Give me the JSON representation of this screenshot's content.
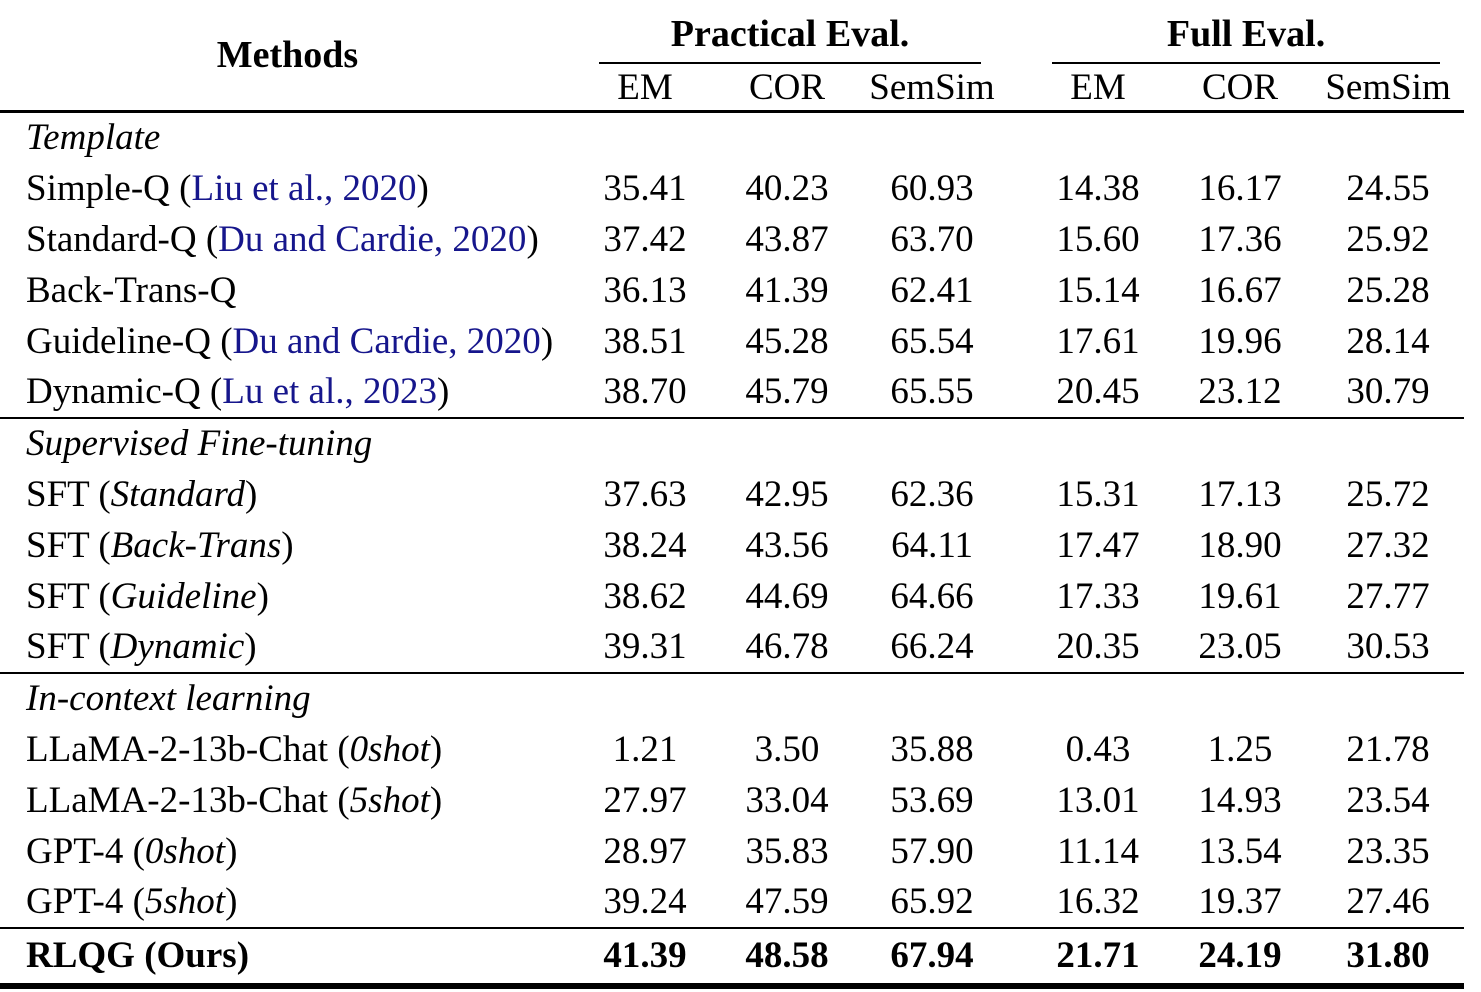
{
  "header": {
    "methods": "Methods",
    "groups": [
      {
        "label": "Practical Eval.",
        "cols": [
          "EM",
          "COR",
          "SemSim"
        ]
      },
      {
        "label": "Full Eval.",
        "cols": [
          "EM",
          "COR",
          "SemSim"
        ]
      }
    ]
  },
  "sections": [
    {
      "label": "Template",
      "rows": [
        {
          "name": "Simple-Q",
          "cite": "Liu et al., 2020",
          "values": [
            "35.41",
            "40.23",
            "60.93",
            "14.38",
            "16.17",
            "24.55"
          ]
        },
        {
          "name": "Standard-Q",
          "cite": "Du and Cardie, 2020",
          "values": [
            "37.42",
            "43.87",
            "63.70",
            "15.60",
            "17.36",
            "25.92"
          ]
        },
        {
          "name": "Back-Trans-Q",
          "values": [
            "36.13",
            "41.39",
            "62.41",
            "15.14",
            "16.67",
            "25.28"
          ]
        },
        {
          "name": "Guideline-Q",
          "cite": "Du and Cardie, 2020",
          "values": [
            "38.51",
            "45.28",
            "65.54",
            "17.61",
            "19.96",
            "28.14"
          ]
        },
        {
          "name": "Dynamic-Q",
          "cite": "Lu et al., 2023",
          "values": [
            "38.70",
            "45.79",
            "65.55",
            "20.45",
            "23.12",
            "30.79"
          ]
        }
      ]
    },
    {
      "label": "Supervised Fine-tuning",
      "rows": [
        {
          "name": "SFT",
          "variant": "Standard",
          "values": [
            "37.63",
            "42.95",
            "62.36",
            "15.31",
            "17.13",
            "25.72"
          ]
        },
        {
          "name": "SFT",
          "variant": "Back-Trans",
          "values": [
            "38.24",
            "43.56",
            "64.11",
            "17.47",
            "18.90",
            "27.32"
          ]
        },
        {
          "name": "SFT",
          "variant": "Guideline",
          "values": [
            "38.62",
            "44.69",
            "64.66",
            "17.33",
            "19.61",
            "27.77"
          ]
        },
        {
          "name": "SFT",
          "variant": "Dynamic",
          "values": [
            "39.31",
            "46.78",
            "66.24",
            "20.35",
            "23.05",
            "30.53"
          ]
        }
      ]
    },
    {
      "label": "In-context learning",
      "rows": [
        {
          "name": "LLaMA-2-13b-Chat",
          "variant": "0shot",
          "values": [
            "1.21",
            "3.50",
            "35.88",
            "0.43",
            "1.25",
            "21.78"
          ]
        },
        {
          "name": "LLaMA-2-13b-Chat",
          "variant": "5shot",
          "values": [
            "27.97",
            "33.04",
            "53.69",
            "13.01",
            "14.93",
            "23.54"
          ]
        },
        {
          "name": "GPT-4",
          "variant": "0shot",
          "values": [
            "28.97",
            "35.83",
            "57.90",
            "11.14",
            "13.54",
            "23.35"
          ]
        },
        {
          "name": "GPT-4",
          "variant": "5shot",
          "values": [
            "39.24",
            "47.59",
            "65.92",
            "16.32",
            "19.37",
            "27.46"
          ]
        }
      ]
    }
  ],
  "final_row": {
    "name": "RLQG",
    "variant_plain": "Ours",
    "values": [
      "41.39",
      "48.58",
      "67.94",
      "21.71",
      "24.19",
      "31.80"
    ]
  },
  "colors": {
    "citation": "#16168c",
    "rule": "#000000"
  }
}
